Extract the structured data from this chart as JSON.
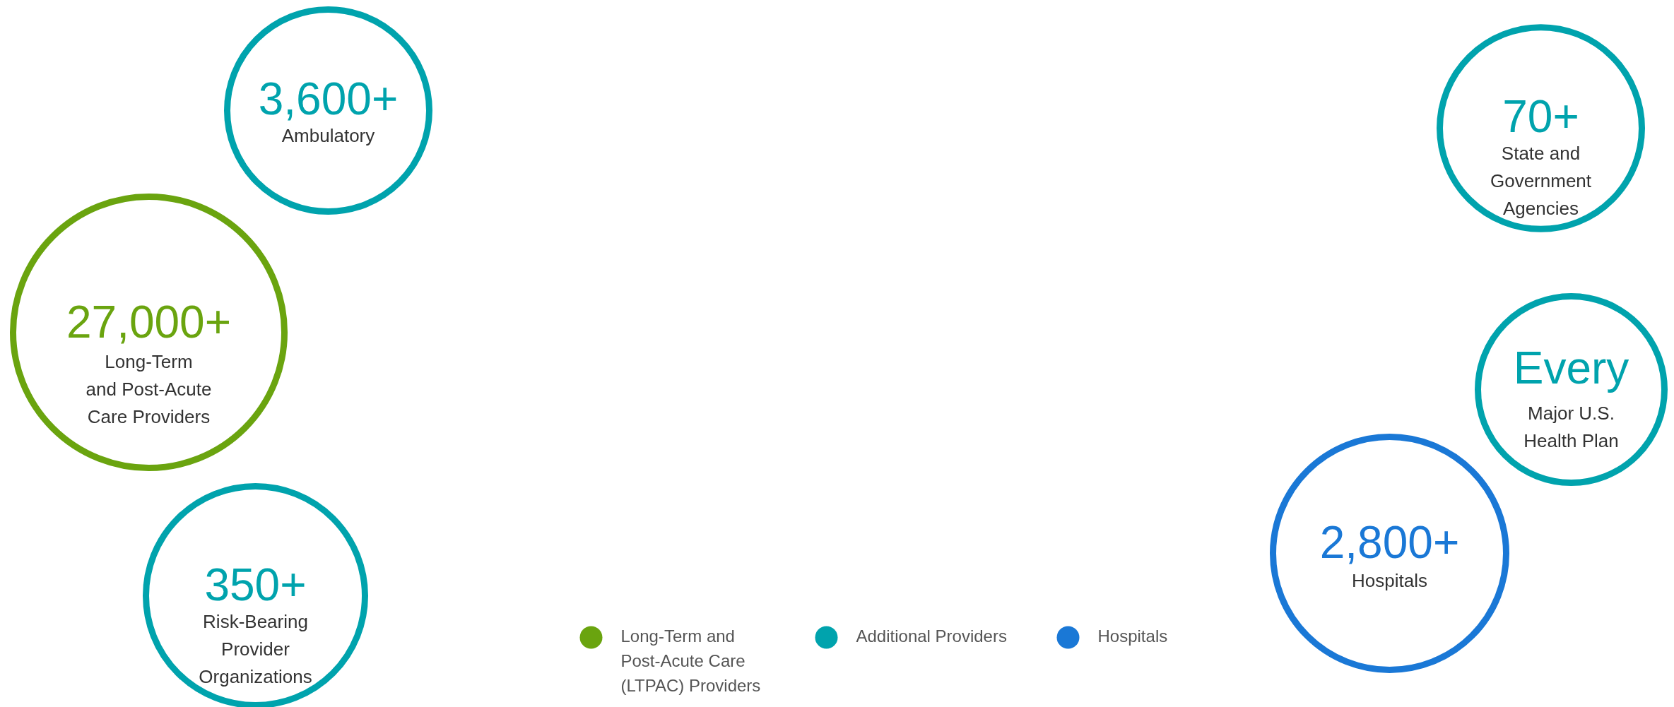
{
  "chart_data": {
    "type": "other",
    "legend": "bottom",
    "categories": [
      "Ambulatory",
      "Long-Term\nand Post-Acute\nCare Providers",
      "Risk-Bearing\nProvider\nOrganizations",
      "State and\nGovernment\nAgencies",
      "Major U.S.\nHealth Plan",
      "Hospitals"
    ],
    "series": [
      {
        "name": "Long-Term and\nPost-Acute Care\n(LTPAC)  Providers",
        "color": "#6aa40f",
        "values": [
          null,
          27000,
          null,
          null,
          null,
          null
        ],
        "value_labels": [
          null,
          "27,000+",
          null,
          null,
          null,
          null
        ]
      },
      {
        "name": "Additional Providers",
        "color": "#00a3ad",
        "values": [
          3600,
          null,
          350,
          70,
          null,
          null
        ],
        "value_labels": [
          "3,600+",
          null,
          "350+",
          "70+",
          "Every",
          null
        ]
      },
      {
        "name": "Hospitals",
        "color": "#1a78d6",
        "values": [
          null,
          null,
          null,
          null,
          null,
          2800
        ],
        "value_labels": [
          null,
          null,
          null,
          null,
          null,
          "2,800+"
        ]
      }
    ]
  }
}
